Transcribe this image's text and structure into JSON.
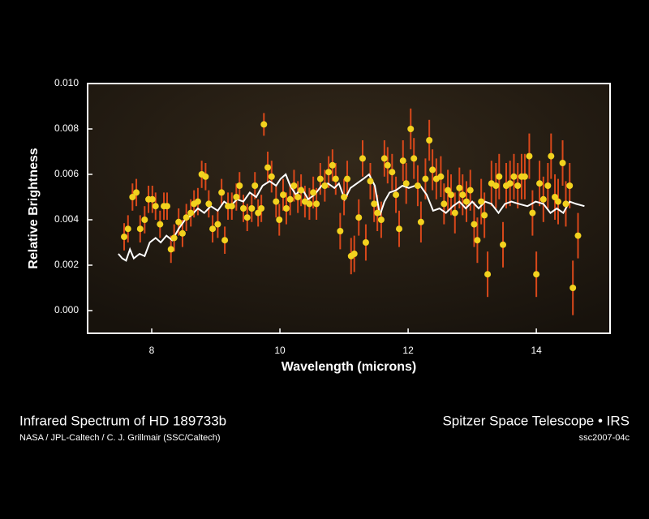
{
  "chart_data": {
    "type": "scatter",
    "y_label": "Relative Brightness",
    "x_label": "Wavelength (microns)",
    "xlim": [
      7.0,
      15.15
    ],
    "ylim": [
      -0.001,
      0.01
    ],
    "xticks": [
      8,
      10,
      12,
      14
    ],
    "yticks": [
      {
        "value": 0.0,
        "label": "0.000"
      },
      {
        "value": 0.002,
        "label": "0.002"
      },
      {
        "value": 0.004,
        "label": "0.004"
      },
      {
        "value": 0.006,
        "label": "0.006"
      },
      {
        "value": 0.008,
        "label": "0.008"
      },
      {
        "value": 0.01,
        "label": "0.010"
      }
    ],
    "point_color": "#f2d21e",
    "error_color": "#d9481a",
    "model_color": "#ffffff",
    "points": [
      [
        7.57,
        0.00325,
        0.0006
      ],
      [
        7.63,
        0.0036,
        0.0006
      ],
      [
        7.7,
        0.005,
        0.0006
      ],
      [
        7.76,
        0.0052,
        0.0006
      ],
      [
        7.82,
        0.0036,
        0.0006
      ],
      [
        7.89,
        0.004,
        0.0006
      ],
      [
        7.95,
        0.0049,
        0.0006
      ],
      [
        8.01,
        0.0049,
        0.0006
      ],
      [
        8.06,
        0.0046,
        0.0006
      ],
      [
        8.13,
        0.0038,
        0.0006
      ],
      [
        8.19,
        0.0046,
        0.0006
      ],
      [
        8.24,
        0.0046,
        0.0006
      ],
      [
        8.3,
        0.0027,
        0.0006
      ],
      [
        8.35,
        0.0032,
        0.0006
      ],
      [
        8.42,
        0.0039,
        0.0006
      ],
      [
        8.48,
        0.0034,
        0.0006
      ],
      [
        8.54,
        0.0041,
        0.0006
      ],
      [
        8.61,
        0.0043,
        0.0006
      ],
      [
        8.66,
        0.0047,
        0.0006
      ],
      [
        8.72,
        0.0048,
        0.0006
      ],
      [
        8.78,
        0.006,
        0.0006
      ],
      [
        8.84,
        0.0059,
        0.0006
      ],
      [
        8.89,
        0.0047,
        0.0006
      ],
      [
        8.95,
        0.0036,
        0.0006
      ],
      [
        9.03,
        0.0038,
        0.0006
      ],
      [
        9.09,
        0.0052,
        0.0006
      ],
      [
        9.14,
        0.0031,
        0.0006
      ],
      [
        9.19,
        0.0046,
        0.0006
      ],
      [
        9.25,
        0.0046,
        0.0006
      ],
      [
        9.32,
        0.005,
        0.0006
      ],
      [
        9.37,
        0.0055,
        0.0006
      ],
      [
        9.43,
        0.0045,
        0.0006
      ],
      [
        9.49,
        0.0041,
        0.0006
      ],
      [
        9.56,
        0.0045,
        0.0006
      ],
      [
        9.61,
        0.0055,
        0.0006
      ],
      [
        9.66,
        0.0043,
        0.0006
      ],
      [
        9.71,
        0.0045,
        0.0006
      ],
      [
        9.75,
        0.0082,
        0.0005
      ],
      [
        9.81,
        0.0063,
        0.0007
      ],
      [
        9.87,
        0.0059,
        0.0007
      ],
      [
        9.94,
        0.0048,
        0.0007
      ],
      [
        9.99,
        0.004,
        0.0007
      ],
      [
        10.05,
        0.0051,
        0.0007
      ],
      [
        10.1,
        0.0045,
        0.0007
      ],
      [
        10.16,
        0.0049,
        0.0007
      ],
      [
        10.22,
        0.0055,
        0.0007
      ],
      [
        10.28,
        0.005,
        0.0007
      ],
      [
        10.33,
        0.0053,
        0.0007
      ],
      [
        10.39,
        0.0048,
        0.0007
      ],
      [
        10.46,
        0.0047,
        0.0007
      ],
      [
        10.52,
        0.0052,
        0.0007
      ],
      [
        10.57,
        0.0047,
        0.0007
      ],
      [
        10.63,
        0.0058,
        0.0007
      ],
      [
        10.7,
        0.0055,
        0.0007
      ],
      [
        10.76,
        0.0061,
        0.0007
      ],
      [
        10.82,
        0.0064,
        0.0007
      ],
      [
        10.87,
        0.0058,
        0.0007
      ],
      [
        10.94,
        0.0035,
        0.0008
      ],
      [
        11.0,
        0.005,
        0.0008
      ],
      [
        11.05,
        0.0058,
        0.0008
      ],
      [
        11.11,
        0.0024,
        0.0008
      ],
      [
        11.16,
        0.0025,
        0.0008
      ],
      [
        11.23,
        0.0041,
        0.0008
      ],
      [
        11.29,
        0.0067,
        0.0008
      ],
      [
        11.34,
        0.003,
        0.0008
      ],
      [
        11.41,
        0.0057,
        0.0008
      ],
      [
        11.47,
        0.0047,
        0.0008
      ],
      [
        11.52,
        0.0043,
        0.0008
      ],
      [
        11.58,
        0.004,
        0.0008
      ],
      [
        11.63,
        0.0067,
        0.0008
      ],
      [
        11.68,
        0.0064,
        0.0008
      ],
      [
        11.75,
        0.0061,
        0.0008
      ],
      [
        11.81,
        0.0051,
        0.0008
      ],
      [
        11.86,
        0.0036,
        0.0008
      ],
      [
        11.92,
        0.0066,
        0.0009
      ],
      [
        11.97,
        0.0056,
        0.0009
      ],
      [
        12.04,
        0.008,
        0.0009
      ],
      [
        12.09,
        0.0067,
        0.0009
      ],
      [
        12.15,
        0.0055,
        0.0009
      ],
      [
        12.2,
        0.0039,
        0.0009
      ],
      [
        12.27,
        0.0058,
        0.0009
      ],
      [
        12.33,
        0.0075,
        0.0009
      ],
      [
        12.38,
        0.0062,
        0.0009
      ],
      [
        12.44,
        0.0058,
        0.0009
      ],
      [
        12.51,
        0.0059,
        0.0009
      ],
      [
        12.56,
        0.0047,
        0.0009
      ],
      [
        12.62,
        0.0053,
        0.0009
      ],
      [
        12.67,
        0.0051,
        0.0009
      ],
      [
        12.73,
        0.0043,
        0.0009
      ],
      [
        12.8,
        0.0054,
        0.0009
      ],
      [
        12.85,
        0.0051,
        0.0009
      ],
      [
        12.91,
        0.0048,
        0.0009
      ],
      [
        12.97,
        0.0053,
        0.0009
      ],
      [
        13.03,
        0.0038,
        0.001
      ],
      [
        13.08,
        0.0031,
        0.001
      ],
      [
        13.14,
        0.0048,
        0.001
      ],
      [
        13.19,
        0.0042,
        0.001
      ],
      [
        13.24,
        0.0016,
        0.001
      ],
      [
        13.3,
        0.0056,
        0.001
      ],
      [
        13.37,
        0.0055,
        0.001
      ],
      [
        13.42,
        0.0059,
        0.001
      ],
      [
        13.48,
        0.0029,
        0.001
      ],
      [
        13.53,
        0.0055,
        0.001
      ],
      [
        13.59,
        0.0056,
        0.001
      ],
      [
        13.65,
        0.0059,
        0.001
      ],
      [
        13.71,
        0.0055,
        0.001
      ],
      [
        13.77,
        0.0059,
        0.001
      ],
      [
        13.82,
        0.0059,
        0.001
      ],
      [
        13.89,
        0.0068,
        0.001
      ],
      [
        13.94,
        0.0043,
        0.001
      ],
      [
        14.0,
        0.0016,
        0.001
      ],
      [
        14.05,
        0.0056,
        0.001
      ],
      [
        14.11,
        0.0049,
        0.001
      ],
      [
        14.18,
        0.0055,
        0.001
      ],
      [
        14.23,
        0.0068,
        0.001
      ],
      [
        14.29,
        0.005,
        0.001
      ],
      [
        14.34,
        0.0048,
        0.001
      ],
      [
        14.41,
        0.0065,
        0.001
      ],
      [
        14.46,
        0.0047,
        0.001
      ],
      [
        14.52,
        0.0055,
        0.001
      ],
      [
        14.57,
        0.001,
        0.0012
      ],
      [
        14.65,
        0.0033,
        0.001
      ]
    ],
    "model": [
      [
        7.48,
        0.0025
      ],
      [
        7.54,
        0.0023
      ],
      [
        7.6,
        0.0022
      ],
      [
        7.66,
        0.0027
      ],
      [
        7.72,
        0.0023
      ],
      [
        7.81,
        0.0025
      ],
      [
        7.89,
        0.0024
      ],
      [
        7.97,
        0.003
      ],
      [
        8.06,
        0.0032
      ],
      [
        8.14,
        0.003
      ],
      [
        8.23,
        0.0033
      ],
      [
        8.32,
        0.0031
      ],
      [
        8.42,
        0.0036
      ],
      [
        8.52,
        0.004
      ],
      [
        8.62,
        0.0042
      ],
      [
        8.72,
        0.0045
      ],
      [
        8.82,
        0.0043
      ],
      [
        8.92,
        0.0046
      ],
      [
        9.03,
        0.0044
      ],
      [
        9.13,
        0.0048
      ],
      [
        9.23,
        0.0046
      ],
      [
        9.33,
        0.0049
      ],
      [
        9.43,
        0.0048
      ],
      [
        9.53,
        0.0052
      ],
      [
        9.63,
        0.005
      ],
      [
        9.73,
        0.0055
      ],
      [
        9.84,
        0.0057
      ],
      [
        9.94,
        0.0055
      ],
      [
        10.01,
        0.0058
      ],
      [
        10.09,
        0.006
      ],
      [
        10.16,
        0.0055
      ],
      [
        10.25,
        0.0051
      ],
      [
        10.34,
        0.0054
      ],
      [
        10.44,
        0.0049
      ],
      [
        10.54,
        0.0051
      ],
      [
        10.65,
        0.0055
      ],
      [
        10.75,
        0.0056
      ],
      [
        10.85,
        0.0054
      ],
      [
        10.92,
        0.0056
      ],
      [
        11.01,
        0.0049
      ],
      [
        11.1,
        0.0054
      ],
      [
        11.2,
        0.0056
      ],
      [
        11.3,
        0.0058
      ],
      [
        11.39,
        0.006
      ],
      [
        11.48,
        0.0055
      ],
      [
        11.56,
        0.0042
      ],
      [
        11.63,
        0.0048
      ],
      [
        11.71,
        0.0052
      ],
      [
        11.81,
        0.0053
      ],
      [
        11.91,
        0.0055
      ],
      [
        12.01,
        0.0054
      ],
      [
        12.11,
        0.0055
      ],
      [
        12.19,
        0.0055
      ],
      [
        12.29,
        0.0051
      ],
      [
        12.39,
        0.0044
      ],
      [
        12.49,
        0.0045
      ],
      [
        12.59,
        0.0043
      ],
      [
        12.7,
        0.0046
      ],
      [
        12.8,
        0.0048
      ],
      [
        12.9,
        0.0045
      ],
      [
        13.0,
        0.0048
      ],
      [
        13.1,
        0.0045
      ],
      [
        13.2,
        0.0048
      ],
      [
        13.3,
        0.0047
      ],
      [
        13.41,
        0.0043
      ],
      [
        13.51,
        0.0047
      ],
      [
        13.61,
        0.0048
      ],
      [
        13.73,
        0.0047
      ],
      [
        13.86,
        0.0046
      ],
      [
        13.99,
        0.0048
      ],
      [
        14.11,
        0.0047
      ],
      [
        14.22,
        0.0043
      ],
      [
        14.32,
        0.0045
      ],
      [
        14.42,
        0.0043
      ],
      [
        14.52,
        0.0048
      ],
      [
        14.62,
        0.0047
      ],
      [
        14.75,
        0.0046
      ]
    ]
  },
  "caption": {
    "title": "Infrared Spectrum of HD 189733b",
    "credit": "NASA / JPL-Caltech / C. J. Grillmair (SSC/Caltech)",
    "mission": "Spitzer Space Telescope • IRS",
    "id": "ssc2007-04c"
  }
}
